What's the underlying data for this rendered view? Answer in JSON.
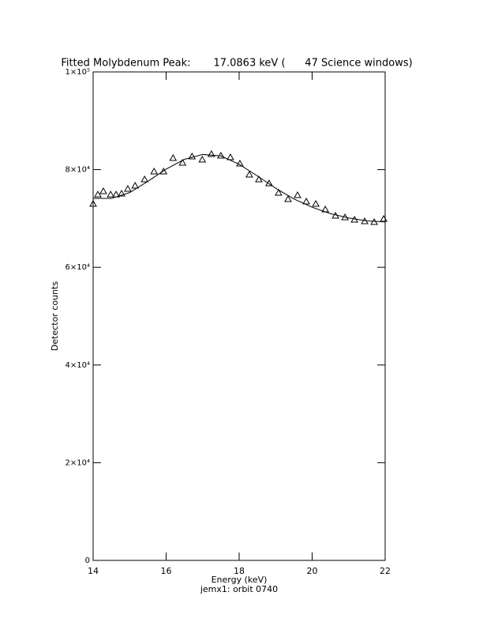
{
  "chart_data": {
    "type": "scatter",
    "title": "Fitted Molybdenum Peak:       17.0863 keV (      47 Science windows)",
    "x_label": "Energy (keV)",
    "subtitle": "jemx1: orbit 0740",
    "y_label": "Detector counts",
    "xlim": [
      14,
      22
    ],
    "xticks": [
      14,
      16,
      18,
      20,
      22
    ],
    "ylim": [
      0,
      100000
    ],
    "yticks": [
      0,
      {
        "value": 20000,
        "label": "2×10⁴"
      },
      {
        "value": 40000,
        "label": "4×10⁴"
      },
      {
        "value": 60000,
        "label": "6×10⁴"
      },
      {
        "value": 80000,
        "label": "8×10⁴"
      },
      {
        "value": 100000,
        "label": "1×10⁵"
      }
    ],
    "series": [
      {
        "color": "#000000",
        "marker": "triangle",
        "x": [
          14.0,
          14.13,
          14.28,
          14.48,
          14.63,
          14.78,
          14.95,
          15.15,
          15.41,
          15.67,
          15.93,
          16.19,
          16.45,
          16.71,
          16.99,
          17.24,
          17.5,
          17.76,
          18.02,
          18.28,
          18.54,
          18.82,
          19.08,
          19.34,
          19.6,
          19.84,
          20.1,
          20.36,
          20.64,
          20.9,
          21.16,
          21.44,
          21.7,
          21.96
        ],
        "values": [
          72980,
          74900,
          75570,
          74900,
          74900,
          75080,
          76050,
          76700,
          78000,
          79610,
          79610,
          82360,
          81390,
          82690,
          82040,
          83170,
          82850,
          82520,
          81230,
          78960,
          78000,
          77180,
          75240,
          73950,
          74760,
          73460,
          72980,
          71840,
          70550,
          70230,
          69740,
          69420,
          69260,
          69900
        ]
      },
      {
        "color": "#000000",
        "marker": "line",
        "x": [
          14.0,
          14.5,
          15.0,
          15.5,
          16.0,
          16.5,
          17.0,
          17.5,
          18.0,
          18.5,
          19.0,
          19.5,
          20.0,
          20.5,
          21.0,
          21.5,
          22.0
        ],
        "values": [
          74100,
          74100,
          75300,
          77600,
          80100,
          82100,
          83100,
          82800,
          81100,
          78700,
          76200,
          74000,
          72300,
          71000,
          70100,
          69500,
          69300
        ]
      }
    ]
  }
}
